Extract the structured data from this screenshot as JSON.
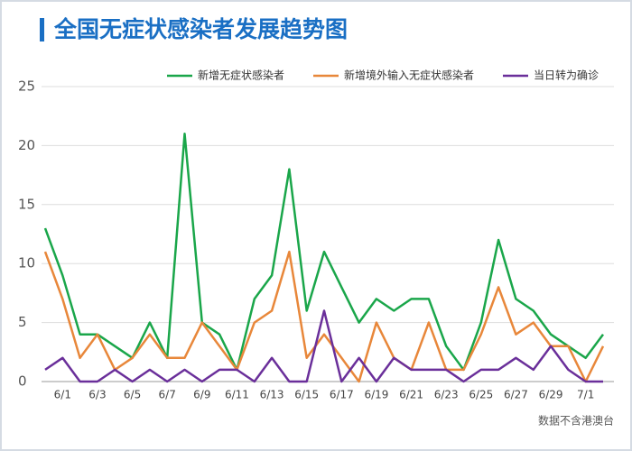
{
  "chart_data": {
    "type": "line",
    "title": "全国无症状感染者发展趋势图",
    "note": "数据不含港澳台",
    "categories": [
      null,
      "6/1",
      null,
      "6/3",
      null,
      "6/5",
      null,
      "6/7",
      null,
      "6/9",
      null,
      "6/11",
      null,
      "6/13",
      null,
      "6/15",
      null,
      "6/17",
      null,
      "6/19",
      null,
      "6/21",
      null,
      "6/23",
      null,
      "6/25",
      null,
      "6/27",
      null,
      "6/29",
      null,
      "7/1",
      null
    ],
    "series": [
      {
        "name": "新增无症状感染者",
        "color": "#1aa64a",
        "values": [
          13,
          9,
          4,
          4,
          3,
          2,
          5,
          2,
          21,
          5,
          4,
          1,
          7,
          9,
          18,
          6,
          11,
          8,
          5,
          7,
          6,
          7,
          7,
          3,
          1,
          5,
          12,
          7,
          6,
          4,
          3,
          2,
          4
        ]
      },
      {
        "name": "新增境外输入无症状感染者",
        "color": "#e8873a",
        "values": [
          11,
          7,
          2,
          4,
          1,
          2,
          4,
          2,
          2,
          5,
          3,
          1,
          5,
          6,
          11,
          2,
          4,
          2,
          0,
          5,
          2,
          1,
          5,
          1,
          1,
          4,
          8,
          4,
          5,
          3,
          3,
          0,
          3
        ]
      },
      {
        "name": "当日转为确诊",
        "color": "#6a2f9a",
        "values": [
          1,
          2,
          0,
          0,
          1,
          0,
          1,
          0,
          1,
          0,
          1,
          1,
          0,
          2,
          0,
          0,
          6,
          0,
          2,
          0,
          2,
          1,
          1,
          1,
          0,
          1,
          1,
          2,
          1,
          3,
          1,
          0,
          0
        ]
      }
    ],
    "ylim": [
      0,
      25
    ],
    "yticks": [
      0,
      5,
      10,
      15,
      20,
      25
    ],
    "grid": true,
    "legend": "top-right"
  }
}
